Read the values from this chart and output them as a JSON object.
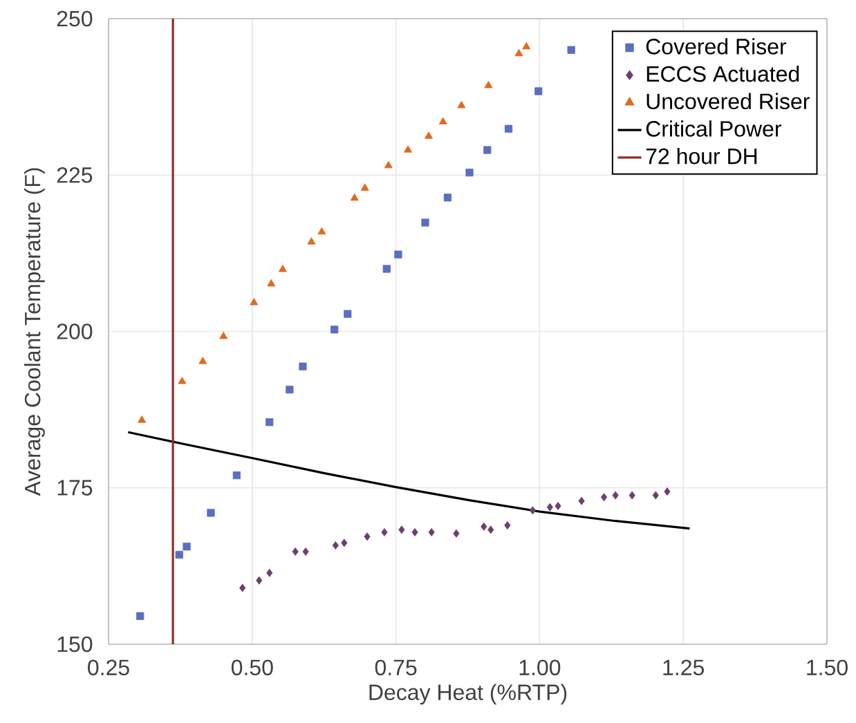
{
  "chart_data": {
    "type": "scatter",
    "xlabel": "Decay Heat (%RTP)",
    "ylabel": "Average Coolant Temperature (F)",
    "xlim": [
      0.25,
      1.5
    ],
    "ylim": [
      150,
      250
    ],
    "xticks": [
      0.25,
      {
        "value": 0.5,
        "label": "0.50"
      },
      0.75,
      {
        "value": 1.0,
        "label": "1.00"
      },
      1.25,
      {
        "value": 1.5,
        "label": "1.50"
      }
    ],
    "yticks": [
      150,
      175,
      200,
      225,
      250
    ],
    "grid": true,
    "legend": "top right",
    "series": [
      {
        "name": "Covered Riser",
        "marker": "square",
        "color": "#5b6fbf",
        "x": [
          0.305,
          0.373,
          0.386,
          0.428,
          0.473,
          0.53,
          0.565,
          0.588,
          0.643,
          0.666,
          0.734,
          0.754,
          0.801,
          0.84,
          0.878,
          0.909,
          0.946,
          0.998,
          1.055
        ],
        "values": [
          154.5,
          164.3,
          165.6,
          171.0,
          177.0,
          185.5,
          190.7,
          194.4,
          200.3,
          202.8,
          210.0,
          212.3,
          217.4,
          221.4,
          225.4,
          229.0,
          232.4,
          238.4,
          245.0
        ]
      },
      {
        "name": "ECCS Actuated",
        "marker": "diamond",
        "color": "#6e3f6e",
        "x": [
          0.483,
          0.512,
          0.53,
          0.575,
          0.593,
          0.645,
          0.66,
          0.7,
          0.73,
          0.76,
          0.783,
          0.812,
          0.855,
          0.903,
          0.915,
          0.944,
          0.988,
          1.018,
          1.032,
          1.073,
          1.112,
          1.132,
          1.161,
          1.202,
          1.222
        ],
        "values": [
          159.0,
          160.2,
          161.4,
          164.8,
          164.8,
          165.8,
          166.2,
          167.2,
          167.9,
          168.3,
          167.9,
          167.9,
          167.7,
          168.8,
          168.3,
          169.0,
          171.4,
          171.9,
          172.1,
          172.9,
          173.5,
          173.8,
          173.8,
          173.8,
          174.4
        ]
      },
      {
        "name": "Uncovered Riser",
        "marker": "triangle",
        "color": "#e06a1e",
        "x": [
          0.308,
          0.378,
          0.414,
          0.45,
          0.503,
          0.533,
          0.553,
          0.603,
          0.621,
          0.678,
          0.696,
          0.737,
          0.771,
          0.807,
          0.832,
          0.864,
          0.911,
          0.964,
          0.977
        ],
        "values": [
          185.8,
          192.0,
          195.2,
          199.2,
          204.6,
          207.6,
          209.9,
          214.3,
          215.9,
          221.3,
          222.9,
          226.5,
          229.0,
          231.2,
          233.5,
          236.1,
          239.3,
          244.4,
          245.5
        ]
      },
      {
        "name": "Critical Power",
        "type": "line",
        "marker": "none",
        "color": "#000000",
        "x": [
          0.284,
          0.386,
          0.503,
          0.627,
          0.751,
          0.879,
          1.0,
          1.132,
          1.261
        ],
        "values": [
          183.9,
          181.9,
          179.7,
          177.3,
          175.1,
          173.0,
          171.2,
          169.7,
          168.5
        ]
      },
      {
        "name": "72 hour DH",
        "type": "line",
        "marker": "none",
        "color": "#8b2f22",
        "x": [
          0.362,
          0.362
        ],
        "values": [
          150,
          250
        ]
      }
    ]
  }
}
